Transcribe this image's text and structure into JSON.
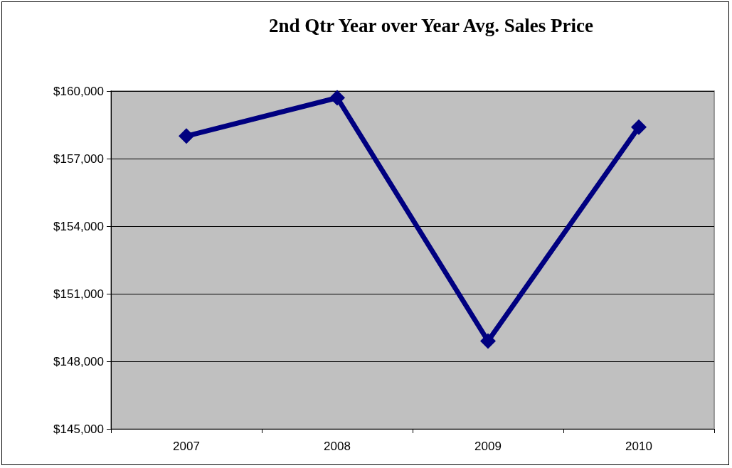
{
  "chart_data": {
    "type": "line",
    "title": "2nd Qtr Year over Year Avg. Sales Price",
    "categories": [
      "2007",
      "2008",
      "2009",
      "2010"
    ],
    "series": [
      {
        "color": "#000080",
        "values": [
          158000,
          159700,
          148900,
          158400
        ]
      }
    ],
    "ylim": [
      145000,
      160000
    ],
    "yticks": [
      {
        "value": 145000,
        "label": "$145,000"
      },
      {
        "value": 148000,
        "label": "$148,000"
      },
      {
        "value": 151000,
        "label": "$151,000"
      },
      {
        "value": 154000,
        "label": "$154,000"
      },
      {
        "value": 157000,
        "label": "$157,000"
      },
      {
        "value": 160000,
        "label": "$160,000"
      }
    ],
    "grid": "y",
    "marker": "diamond",
    "line_style": "solid"
  }
}
